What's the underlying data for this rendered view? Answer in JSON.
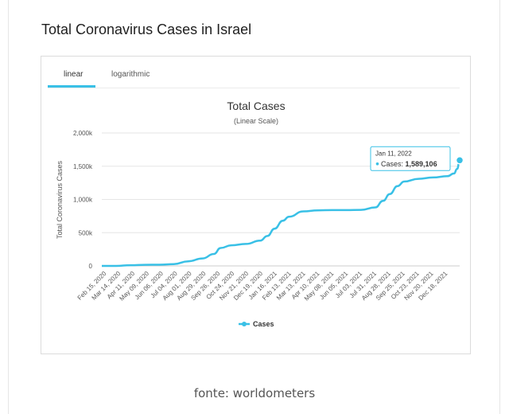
{
  "page": {
    "title": "Total Coronavirus Cases in Israel",
    "footer": "fonte: worldometers"
  },
  "tabs": [
    {
      "label": "linear",
      "active": true
    },
    {
      "label": "logarithmic",
      "active": false
    }
  ],
  "colors": {
    "accent": "#39c0e6",
    "line": "#39c0e6",
    "text": "#333333",
    "grid": "#e6e6e6"
  },
  "chart_data": {
    "type": "line",
    "title": "Total Cases",
    "subtitle": "(Linear Scale)",
    "ylabel": "Total Coronavirus Cases",
    "xlabel": "",
    "ylim": [
      0,
      2000000
    ],
    "yticks": [
      "0",
      "500k",
      "1,000k",
      "1,500k",
      "2,000k"
    ],
    "ytick_values": [
      0,
      500000,
      1000000,
      1500000,
      2000000
    ],
    "grid": true,
    "legend_position": "bottom",
    "xtick_labels": [
      "Feb 15, 2020",
      "Mar 14, 2020",
      "Apr 11, 2020",
      "May 09, 2020",
      "Jun 06, 2020",
      "Jul 04, 2020",
      "Aug 01, 2020",
      "Aug 29, 2020",
      "Sep 26, 2020",
      "Oct 24, 2020",
      "Nov 21, 2020",
      "Dec 19, 2020",
      "Jan 16, 2021",
      "Feb 13, 2021",
      "Mar 13, 2021",
      "Apr 10, 2021",
      "May 08, 2021",
      "Jun 05, 2021",
      "Jul 03, 2021",
      "Jul 31, 2021",
      "Aug 28, 2021",
      "Sep 25, 2021",
      "Oct 23, 2021",
      "Nov 20, 2021",
      "Dec 18, 2021"
    ],
    "x_start": "2020-02-15",
    "x_end": "2022-01-11",
    "series": [
      {
        "name": "Cases",
        "points": [
          [
            "2020-02-15",
            0
          ],
          [
            "2020-03-14",
            200
          ],
          [
            "2020-04-11",
            11000
          ],
          [
            "2020-05-09",
            16500
          ],
          [
            "2020-06-06",
            18000
          ],
          [
            "2020-07-04",
            27000
          ],
          [
            "2020-08-01",
            70000
          ],
          [
            "2020-08-29",
            112000
          ],
          [
            "2020-09-20",
            180000
          ],
          [
            "2020-10-03",
            270000
          ],
          [
            "2020-10-24",
            310000
          ],
          [
            "2020-11-21",
            330000
          ],
          [
            "2020-12-19",
            380000
          ],
          [
            "2021-01-02",
            450000
          ],
          [
            "2021-01-16",
            560000
          ],
          [
            "2021-02-01",
            680000
          ],
          [
            "2021-02-13",
            740000
          ],
          [
            "2021-03-13",
            820000
          ],
          [
            "2021-04-10",
            836000
          ],
          [
            "2021-05-08",
            839000
          ],
          [
            "2021-06-05",
            840000
          ],
          [
            "2021-07-03",
            843000
          ],
          [
            "2021-07-31",
            880000
          ],
          [
            "2021-08-15",
            980000
          ],
          [
            "2021-08-28",
            1080000
          ],
          [
            "2021-09-12",
            1200000
          ],
          [
            "2021-09-25",
            1270000
          ],
          [
            "2021-10-23",
            1310000
          ],
          [
            "2021-11-20",
            1330000
          ],
          [
            "2021-12-18",
            1350000
          ],
          [
            "2021-12-31",
            1390000
          ],
          [
            "2022-01-06",
            1460000
          ],
          [
            "2022-01-11",
            1589106
          ]
        ]
      }
    ],
    "tooltip": {
      "date": "Jan 11, 2022",
      "series": "Cases",
      "value": "1,589,106"
    }
  }
}
